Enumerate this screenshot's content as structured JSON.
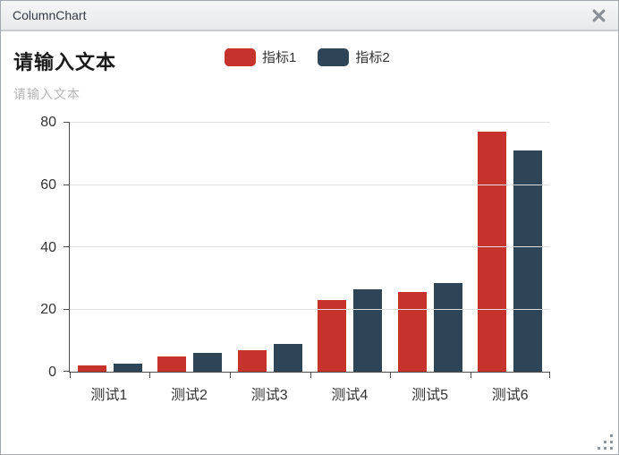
{
  "window": {
    "title": "ColumnChart"
  },
  "chart": {
    "title": "请输入文本",
    "subtitle": "请输入文本"
  },
  "chart_data": {
    "type": "bar",
    "title": "请输入文本",
    "subtitle": "请输入文本",
    "categories": [
      "测试1",
      "测试2",
      "测试3",
      "测试4",
      "测试5",
      "测试6"
    ],
    "series": [
      {
        "name": "指标1",
        "color": "#c6332c",
        "values": [
          2,
          5,
          7,
          23,
          25.5,
          77
        ]
      },
      {
        "name": "指标2",
        "color": "#2e4557",
        "values": [
          2.7,
          6,
          9,
          26.5,
          28.5,
          71
        ]
      }
    ],
    "ylim": [
      0,
      80
    ],
    "y_ticks": [
      0,
      20,
      40,
      60,
      80
    ],
    "grid": true,
    "legend_position": "top"
  },
  "colors": {
    "axis": "#4d4d4d",
    "gridline": "#e0e0e0",
    "titlebar_border": "#c6ccd2",
    "close_icon": "#8a9096"
  }
}
